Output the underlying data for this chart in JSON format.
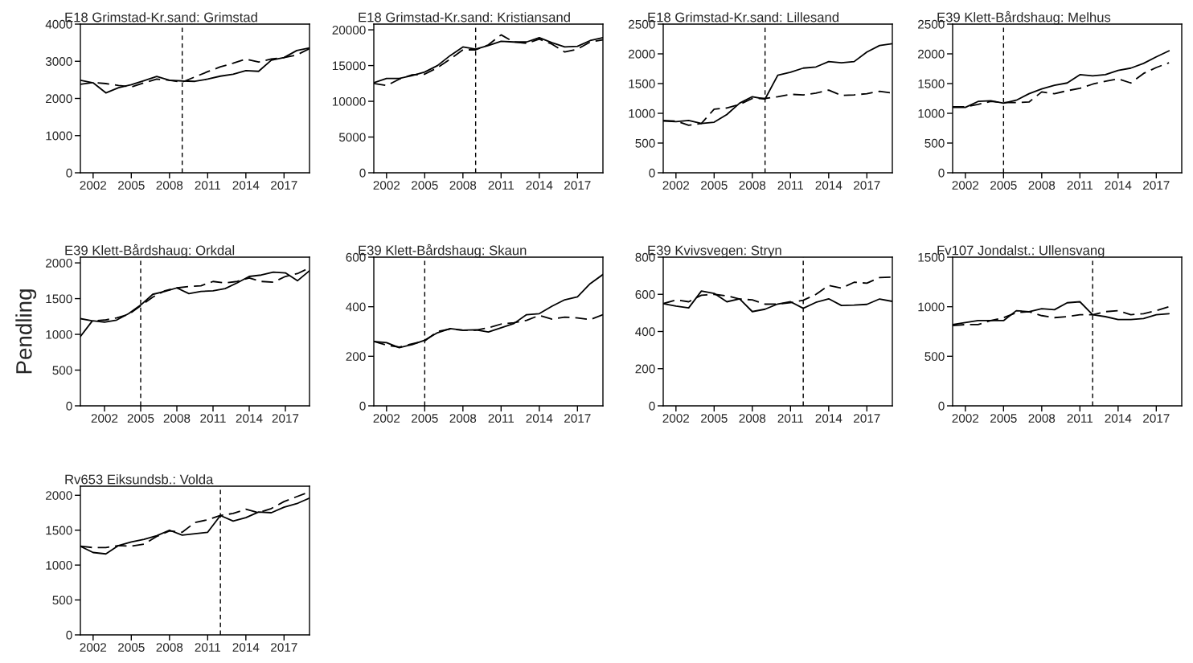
{
  "chart_data": [
    {
      "type": "line",
      "title": "E18 Grimstad-Kr.sand: Grimstad",
      "x": [
        2001,
        2002,
        2003,
        2004,
        2005,
        2006,
        2007,
        2008,
        2009,
        2010,
        2011,
        2012,
        2013,
        2014,
        2015,
        2016,
        2017,
        2018,
        2019
      ],
      "xlim": [
        2001,
        2019
      ],
      "xticks": [
        2002,
        2005,
        2008,
        2011,
        2014,
        2017
      ],
      "ylim": [
        0,
        4000
      ],
      "yticks": [
        0,
        1000,
        2000,
        3000,
        4000
      ],
      "grid": false,
      "marker": "none",
      "series": [
        {
          "color": "#000000",
          "line_style": "solid",
          "values": [
            2490,
            2420,
            2150,
            2290,
            2370,
            2480,
            2590,
            2490,
            2470,
            2460,
            2520,
            2600,
            2650,
            2750,
            2730,
            3030,
            3100,
            3290,
            3360
          ]
        },
        {
          "color": "#000000",
          "line_style": "dashed",
          "values": [
            2380,
            2430,
            2400,
            2350,
            2310,
            2420,
            2520,
            2490,
            2440,
            2580,
            2720,
            2850,
            2950,
            3060,
            2980,
            3060,
            3100,
            3170,
            3340
          ]
        }
      ],
      "ref_lines": [
        {
          "axis": "x",
          "value": 2009,
          "line_style": "dashed",
          "color": "#000000"
        }
      ]
    },
    {
      "type": "line",
      "title": "E18 Grimstad-Kr.sand: Kristiansand",
      "x": [
        2001,
        2002,
        2003,
        2004,
        2005,
        2006,
        2007,
        2008,
        2009,
        2010,
        2011,
        2012,
        2013,
        2014,
        2015,
        2016,
        2017,
        2018,
        2019
      ],
      "xlim": [
        2001,
        2019
      ],
      "xticks": [
        2002,
        2005,
        2008,
        2011,
        2014,
        2017
      ],
      "ylim": [
        0,
        20800
      ],
      "yticks": [
        0,
        5000,
        10000,
        15000,
        20000
      ],
      "grid": false,
      "marker": "none",
      "series": [
        {
          "color": "#000000",
          "line_style": "solid",
          "values": [
            12600,
            13200,
            13200,
            13600,
            14100,
            15000,
            16400,
            17600,
            17300,
            17800,
            18400,
            18300,
            18300,
            18900,
            18200,
            17600,
            17700,
            18500,
            18900
          ]
        },
        {
          "color": "#000000",
          "line_style": "dashed",
          "values": [
            12500,
            12200,
            13100,
            13700,
            13800,
            14700,
            15900,
            17200,
            17200,
            17900,
            19300,
            18300,
            18100,
            18700,
            18000,
            16900,
            17300,
            18300,
            18600
          ]
        }
      ],
      "ref_lines": [
        {
          "axis": "x",
          "value": 2009,
          "line_style": "dashed",
          "color": "#000000"
        }
      ]
    },
    {
      "type": "line",
      "title": "E18 Grimstad-Kr.sand: Lillesand",
      "x": [
        2001,
        2002,
        2003,
        2004,
        2005,
        2006,
        2007,
        2008,
        2009,
        2010,
        2011,
        2012,
        2013,
        2014,
        2015,
        2016,
        2017,
        2018,
        2019
      ],
      "xlim": [
        2001,
        2019
      ],
      "xticks": [
        2002,
        2005,
        2008,
        2011,
        2014,
        2017
      ],
      "ylim": [
        0,
        2500
      ],
      "yticks": [
        0,
        500,
        1000,
        1500,
        2000,
        2500
      ],
      "grid": false,
      "marker": "none",
      "series": [
        {
          "color": "#000000",
          "line_style": "solid",
          "values": [
            870,
            860,
            880,
            830,
            850,
            980,
            1170,
            1280,
            1240,
            1640,
            1690,
            1760,
            1780,
            1870,
            1850,
            1870,
            2030,
            2140,
            2170
          ]
        },
        {
          "color": "#000000",
          "line_style": "dashed",
          "values": [
            880,
            870,
            800,
            830,
            1070,
            1090,
            1150,
            1250,
            1250,
            1280,
            1320,
            1310,
            1340,
            1390,
            1300,
            1310,
            1330,
            1370,
            1340
          ]
        }
      ],
      "ref_lines": [
        {
          "axis": "x",
          "value": 2009,
          "line_style": "dashed",
          "color": "#000000"
        }
      ]
    },
    {
      "type": "line",
      "title": "E39 Klett-Bårdshaug: Melhus",
      "x": [
        2001,
        2002,
        2003,
        2004,
        2005,
        2006,
        2007,
        2008,
        2009,
        2010,
        2011,
        2012,
        2013,
        2014,
        2015,
        2016,
        2017,
        2018
      ],
      "xlim": [
        2001,
        2019
      ],
      "xticks": [
        2002,
        2005,
        2008,
        2011,
        2014,
        2017
      ],
      "ylim": [
        0,
        2500
      ],
      "yticks": [
        0,
        500,
        1000,
        1500,
        2000,
        2500
      ],
      "grid": false,
      "marker": "none",
      "series": [
        {
          "color": "#000000",
          "line_style": "solid",
          "values": [
            1100,
            1100,
            1200,
            1210,
            1170,
            1220,
            1330,
            1410,
            1470,
            1510,
            1650,
            1630,
            1650,
            1720,
            1760,
            1840,
            1950,
            2050
          ]
        },
        {
          "color": "#000000",
          "line_style": "dashed",
          "values": [
            1110,
            1110,
            1150,
            1200,
            1180,
            1180,
            1190,
            1360,
            1330,
            1380,
            1420,
            1490,
            1540,
            1580,
            1510,
            1670,
            1770,
            1850
          ]
        }
      ],
      "ref_lines": [
        {
          "axis": "x",
          "value": 2005,
          "line_style": "dashed",
          "color": "#000000"
        }
      ]
    },
    {
      "type": "line",
      "title": "E39 Klett-Bårdshaug: Orkdal",
      "ylabel": "Pendling",
      "x": [
        2000,
        2001,
        2002,
        2003,
        2004,
        2005,
        2006,
        2007,
        2008,
        2009,
        2010,
        2011,
        2012,
        2013,
        2014,
        2015,
        2016,
        2017,
        2018,
        2019
      ],
      "xlim": [
        2000,
        2019
      ],
      "xticks": [
        2002,
        2005,
        2008,
        2011,
        2014,
        2017
      ],
      "ylim": [
        0,
        2080
      ],
      "yticks": [
        0,
        500,
        1000,
        1500,
        2000
      ],
      "grid": false,
      "marker": "none",
      "series": [
        {
          "color": "#000000",
          "line_style": "solid",
          "values": [
            970,
            1190,
            1170,
            1200,
            1290,
            1410,
            1560,
            1600,
            1650,
            1570,
            1600,
            1610,
            1640,
            1720,
            1810,
            1830,
            1870,
            1860,
            1750,
            1890
          ]
        },
        {
          "color": "#000000",
          "line_style": "dashed",
          "values": [
            1220,
            1190,
            1200,
            1230,
            1280,
            1400,
            1520,
            1610,
            1650,
            1670,
            1680,
            1740,
            1720,
            1740,
            1790,
            1740,
            1730,
            1810,
            1850,
            1930
          ]
        }
      ],
      "ref_lines": [
        {
          "axis": "x",
          "value": 2005,
          "line_style": "dashed",
          "color": "#000000"
        }
      ]
    },
    {
      "type": "line",
      "title": "E39 Klett-Bårdshaug: Skaun",
      "x": [
        2001,
        2002,
        2003,
        2004,
        2005,
        2006,
        2007,
        2008,
        2009,
        2010,
        2011,
        2012,
        2013,
        2014,
        2015,
        2016,
        2017,
        2018,
        2019
      ],
      "xlim": [
        2001,
        2019
      ],
      "xticks": [
        2002,
        2005,
        2008,
        2011,
        2014,
        2017
      ],
      "ylim": [
        0,
        600
      ],
      "yticks": [
        0,
        200,
        400,
        600
      ],
      "grid": false,
      "marker": "none",
      "series": [
        {
          "color": "#000000",
          "line_style": "solid",
          "values": [
            260,
            255,
            235,
            247,
            265,
            295,
            312,
            305,
            307,
            298,
            315,
            332,
            368,
            372,
            402,
            428,
            440,
            493,
            530
          ]
        },
        {
          "color": "#000000",
          "line_style": "dashed",
          "values": [
            260,
            245,
            237,
            250,
            262,
            300,
            310,
            305,
            305,
            315,
            330,
            335,
            345,
            365,
            350,
            358,
            355,
            348,
            368
          ]
        }
      ],
      "ref_lines": [
        {
          "axis": "x",
          "value": 2005,
          "line_style": "dashed",
          "color": "#000000"
        }
      ]
    },
    {
      "type": "line",
      "title": "E39 Kvivsvegen: Stryn",
      "x": [
        2001,
        2002,
        2003,
        2004,
        2005,
        2006,
        2007,
        2008,
        2009,
        2010,
        2011,
        2012,
        2013,
        2014,
        2015,
        2016,
        2017,
        2018,
        2019
      ],
      "xlim": [
        2001,
        2019
      ],
      "xticks": [
        2002,
        2005,
        2008,
        2011,
        2014,
        2017
      ],
      "ylim": [
        0,
        800
      ],
      "yticks": [
        0,
        200,
        400,
        600,
        800
      ],
      "grid": false,
      "marker": "none",
      "series": [
        {
          "color": "#000000",
          "line_style": "solid",
          "values": [
            550,
            537,
            527,
            618,
            605,
            560,
            576,
            507,
            520,
            548,
            560,
            525,
            557,
            576,
            540,
            542,
            546,
            575,
            562
          ]
        },
        {
          "color": "#000000",
          "line_style": "dashed",
          "values": [
            550,
            570,
            560,
            595,
            600,
            592,
            575,
            570,
            547,
            548,
            555,
            568,
            600,
            648,
            633,
            665,
            660,
            690,
            693
          ]
        }
      ],
      "ref_lines": [
        {
          "axis": "x",
          "value": 2012,
          "line_style": "dashed",
          "color": "#000000"
        }
      ]
    },
    {
      "type": "line",
      "title": "Fv107 Jondalst.: Ullensvang",
      "x": [
        2001,
        2002,
        2003,
        2004,
        2005,
        2006,
        2007,
        2008,
        2009,
        2010,
        2011,
        2012,
        2013,
        2014,
        2015,
        2016,
        2017,
        2018
      ],
      "xlim": [
        2001,
        2019
      ],
      "xticks": [
        2002,
        2005,
        2008,
        2011,
        2014,
        2017
      ],
      "ylim": [
        0,
        1500
      ],
      "yticks": [
        0,
        500,
        1000,
        1500
      ],
      "grid": false,
      "marker": "none",
      "series": [
        {
          "color": "#000000",
          "line_style": "solid",
          "values": [
            820,
            840,
            860,
            860,
            860,
            960,
            950,
            980,
            970,
            1040,
            1050,
            920,
            900,
            870,
            870,
            880,
            920,
            930
          ]
        },
        {
          "color": "#000000",
          "line_style": "dashed",
          "values": [
            810,
            820,
            820,
            860,
            890,
            940,
            950,
            910,
            890,
            900,
            920,
            920,
            950,
            960,
            920,
            930,
            960,
            1000
          ]
        }
      ],
      "ref_lines": [
        {
          "axis": "x",
          "value": 2012,
          "line_style": "dashed",
          "color": "#000000"
        }
      ]
    },
    {
      "type": "line",
      "title": "Rv653 Eiksundsb.: Volda",
      "x": [
        2001,
        2002,
        2003,
        2004,
        2005,
        2006,
        2007,
        2008,
        2009,
        2010,
        2011,
        2012,
        2013,
        2014,
        2015,
        2016,
        2017,
        2018,
        2019
      ],
      "xlim": [
        2001,
        2019
      ],
      "xticks": [
        2002,
        2005,
        2008,
        2011,
        2014,
        2017
      ],
      "ylim": [
        0,
        2130
      ],
      "yticks": [
        0,
        500,
        1000,
        1500,
        2000
      ],
      "grid": false,
      "marker": "none",
      "series": [
        {
          "color": "#000000",
          "line_style": "solid",
          "values": [
            1270,
            1180,
            1160,
            1280,
            1330,
            1370,
            1420,
            1500,
            1430,
            1450,
            1470,
            1710,
            1630,
            1680,
            1760,
            1750,
            1830,
            1880,
            1960
          ]
        },
        {
          "color": "#000000",
          "line_style": "dashed",
          "values": [
            1270,
            1250,
            1250,
            1280,
            1270,
            1300,
            1410,
            1490,
            1470,
            1610,
            1650,
            1710,
            1740,
            1800,
            1750,
            1810,
            1910,
            1980,
            2050
          ]
        }
      ],
      "ref_lines": [
        {
          "axis": "x",
          "value": 2012,
          "line_style": "dashed",
          "color": "#000000"
        }
      ]
    }
  ]
}
